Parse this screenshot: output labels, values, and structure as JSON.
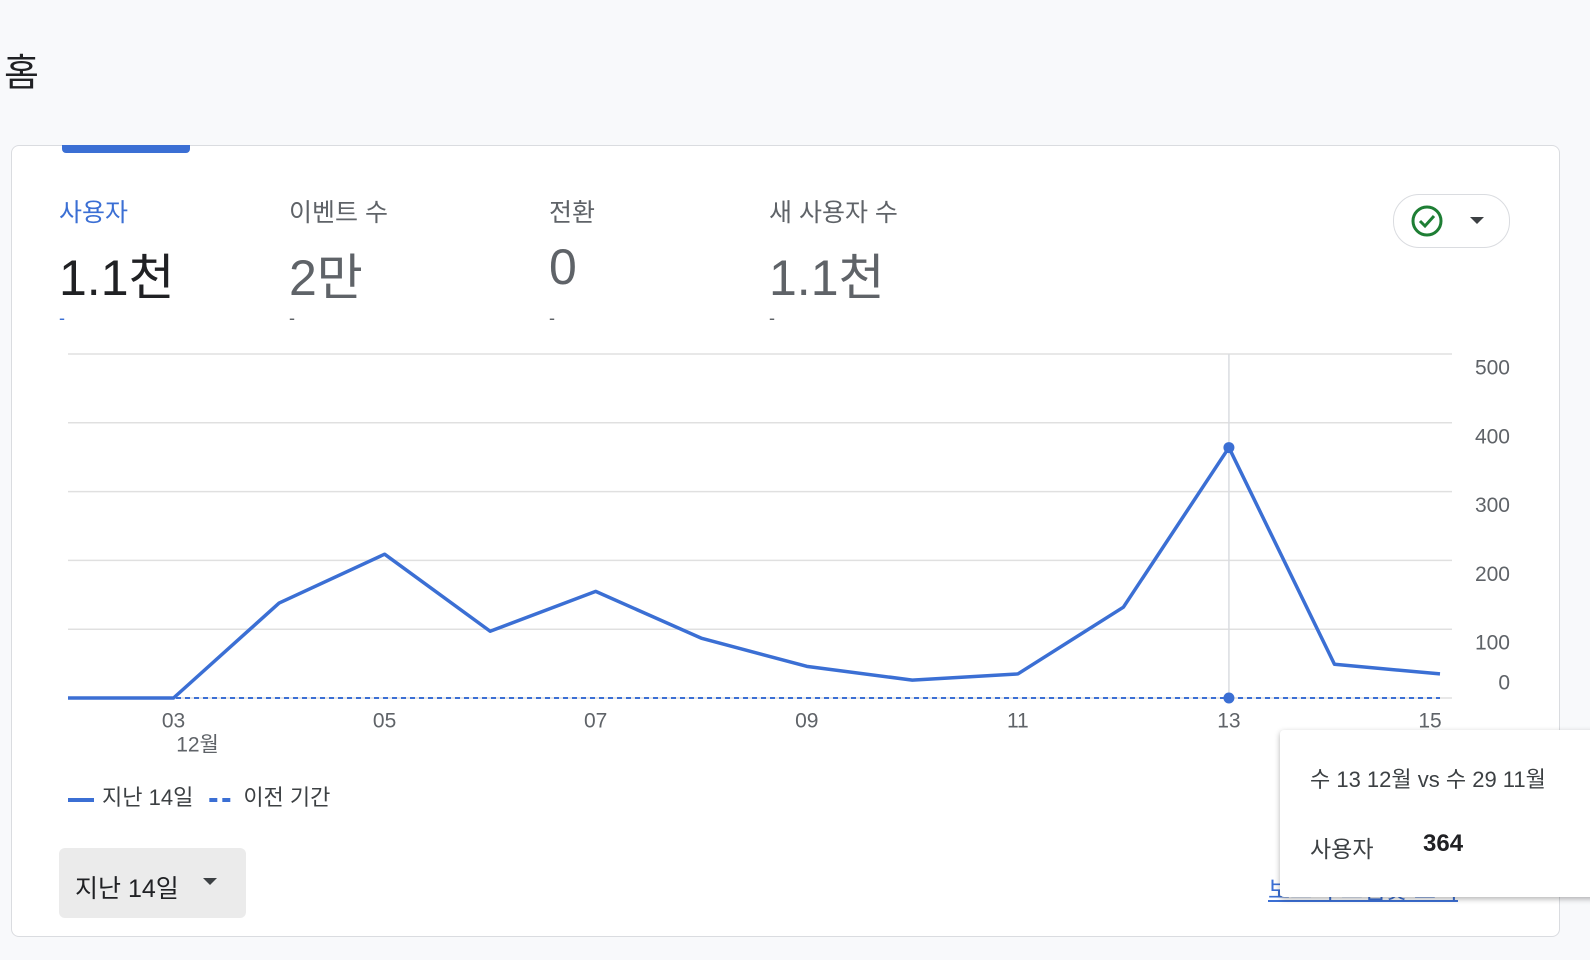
{
  "page_title": "홈",
  "metrics": [
    {
      "label": "사용자",
      "value": "1.1천",
      "change": "-"
    },
    {
      "label": "이벤트 수",
      "value": "2만",
      "change": "-"
    },
    {
      "label": "전환",
      "value": "0",
      "change": "-"
    },
    {
      "label": "새 사용자 수",
      "value": "1.1천",
      "change": "-"
    }
  ],
  "chart_data": {
    "type": "line",
    "categories": [
      null,
      "03",
      null,
      "05",
      null,
      "07",
      null,
      "09",
      null,
      "11",
      null,
      "13",
      null,
      "15"
    ],
    "x_sublabel": "12월",
    "series": [
      {
        "name": "지난 14일",
        "color": "#3b6fd4",
        "dashed": false,
        "values": [
          0,
          0,
          138,
          209,
          97,
          155,
          87,
          46,
          26,
          35,
          132,
          364,
          49,
          35
        ]
      },
      {
        "name": "이전 기간",
        "color": "#3b6fd4",
        "dashed": true,
        "values": [
          0,
          0,
          0,
          0,
          0,
          0,
          0,
          0,
          0,
          0,
          0,
          0,
          0,
          0
        ]
      }
    ],
    "ylim": [
      0,
      500
    ],
    "yticks": [
      0,
      100,
      200,
      300,
      400,
      500
    ],
    "grid": true,
    "highlight_index": 11
  },
  "date_range": {
    "label": "지난 14일"
  },
  "report_link": "보고서 스냅샷 보기",
  "tooltip": {
    "title": "수 13 12월 vs 수 29 11월",
    "metric": "사용자",
    "value": 364
  }
}
